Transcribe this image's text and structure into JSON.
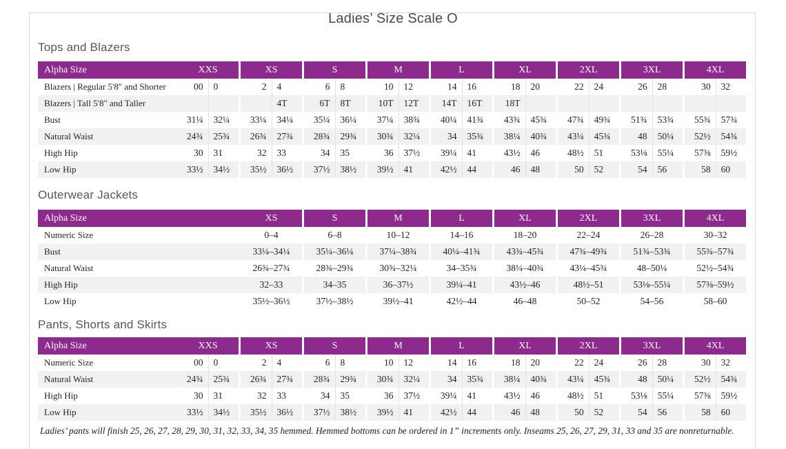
{
  "page": {
    "title": "Ladies’ Size Scale O",
    "footnote": "Ladies’ pants will finish 25, 26, 27, 28, 29, 30, 31, 32, 33, 34, 35 hemmed. Hemmed bottoms can be ordered in 1” increments only. Inseams 25, 26, 27, 29, 31, 33 and 35 are nonreturnable."
  },
  "colors": {
    "header_bg": "#8e2a8e",
    "stripe": "#f3f1ef",
    "heading_text": "#575757",
    "body_text": "#242424",
    "frame_border": "#dadada"
  },
  "tables": [
    {
      "section": "Tops and Blazers",
      "header_label": "Alpha Size",
      "merged": false,
      "columns": [
        "XXS",
        "XS",
        "S",
        "M",
        "L",
        "XL",
        "2XL",
        "3XL",
        "4XL"
      ],
      "rows": [
        {
          "label": "Blazers | Regular 5'8\" and Shorter",
          "cells": [
            [
              "00",
              "0"
            ],
            [
              "2",
              "4"
            ],
            [
              "6",
              "8"
            ],
            [
              "10",
              "12"
            ],
            [
              "14",
              "16"
            ],
            [
              "18",
              "20"
            ],
            [
              "22",
              "24"
            ],
            [
              "26",
              "28"
            ],
            [
              "30",
              "32"
            ]
          ]
        },
        {
          "label": "Blazers | Tall 5'8\" and Taller",
          "cells": [
            [
              "",
              ""
            ],
            [
              "",
              "4T"
            ],
            [
              "6T",
              "8T"
            ],
            [
              "10T",
              "12T"
            ],
            [
              "14T",
              "16T"
            ],
            [
              "18T",
              ""
            ],
            [
              "",
              ""
            ],
            [
              "",
              ""
            ],
            [
              "",
              ""
            ]
          ]
        },
        {
          "label": "Bust",
          "cells": [
            [
              "31¼",
              "32¼"
            ],
            [
              "33¼",
              "34¼"
            ],
            [
              "35¼",
              "36¼"
            ],
            [
              "37¼",
              "38¾"
            ],
            [
              "40¼",
              "41¾"
            ],
            [
              "43¾",
              "45¾"
            ],
            [
              "47¾",
              "49¾"
            ],
            [
              "51¾",
              "53¾"
            ],
            [
              "55¾",
              "57¾"
            ]
          ]
        },
        {
          "label": "Natural Waist",
          "cells": [
            [
              "24¾",
              "25¾"
            ],
            [
              "26¾",
              "27¾"
            ],
            [
              "28¾",
              "29¾"
            ],
            [
              "30¾",
              "32¼"
            ],
            [
              "34",
              "35¾"
            ],
            [
              "38¼",
              "40¾"
            ],
            [
              "43¼",
              "45¾"
            ],
            [
              "48",
              "50¼"
            ],
            [
              "52½",
              "54¾"
            ]
          ]
        },
        {
          "label": "High Hip",
          "cells": [
            [
              "30",
              "31"
            ],
            [
              "32",
              "33"
            ],
            [
              "34",
              "35"
            ],
            [
              "36",
              "37½"
            ],
            [
              "39¼",
              "41"
            ],
            [
              "43½",
              "46"
            ],
            [
              "48½",
              "51"
            ],
            [
              "53⅛",
              "55¼"
            ],
            [
              "57⅜",
              "59½"
            ]
          ]
        },
        {
          "label": "Low Hip",
          "cells": [
            [
              "33½",
              "34½"
            ],
            [
              "35½",
              "36½"
            ],
            [
              "37½",
              "38½"
            ],
            [
              "39½",
              "41"
            ],
            [
              "42½",
              "44"
            ],
            [
              "46",
              "48"
            ],
            [
              "50",
              "52"
            ],
            [
              "54",
              "56"
            ],
            [
              "58",
              "60"
            ]
          ]
        }
      ]
    },
    {
      "section": "Outerwear Jackets",
      "header_label": "Alpha Size",
      "merged": true,
      "columns": [
        "XS",
        "S",
        "M",
        "L",
        "XL",
        "2XL",
        "3XL",
        "4XL"
      ],
      "rows": [
        {
          "label": "Numeric Size",
          "cells": [
            "0–4",
            "6–8",
            "10–12",
            "14–16",
            "18–20",
            "22–24",
            "26–28",
            "30–32"
          ]
        },
        {
          "label": "Bust",
          "cells": [
            "33¼–34¼",
            "35¼–36¼",
            "37¼–38¾",
            "40¼–41¾",
            "43¾–45¾",
            "47¾–49¾",
            "51¾–53¾",
            "55¾–57¾"
          ]
        },
        {
          "label": "Natural Waist",
          "cells": [
            "26¾–27¾",
            "28¾–29¾",
            "30¾–32¼",
            "34–35¾",
            "38¼–40¾",
            "43¼–45¾",
            "48–50¼",
            "52½–54¾"
          ]
        },
        {
          "label": "High Hip",
          "cells": [
            "32–33",
            "34–35",
            "36–37½",
            "39¼–41",
            "43½–46",
            "48½–51",
            "53⅛–55¼",
            "57⅜–59½"
          ]
        },
        {
          "label": "Low Hip",
          "cells": [
            "35½–36½",
            "37½–38½",
            "39½–41",
            "42½–44",
            "46–48",
            "50–52",
            "54–56",
            "58–60"
          ]
        }
      ]
    },
    {
      "section": "Pants, Shorts and Skirts",
      "header_label": "Alpha Size",
      "merged": false,
      "columns": [
        "XXS",
        "XS",
        "S",
        "M",
        "L",
        "XL",
        "2XL",
        "3XL",
        "4XL"
      ],
      "rows": [
        {
          "label": "Numeric Size",
          "cells": [
            [
              "00",
              "0"
            ],
            [
              "2",
              "4"
            ],
            [
              "6",
              "8"
            ],
            [
              "10",
              "12"
            ],
            [
              "14",
              "16"
            ],
            [
              "18",
              "20"
            ],
            [
              "22",
              "24"
            ],
            [
              "26",
              "28"
            ],
            [
              "30",
              "32"
            ]
          ]
        },
        {
          "label": "Natural Waist",
          "cells": [
            [
              "24¾",
              "25¾"
            ],
            [
              "26¾",
              "27¾"
            ],
            [
              "28¾",
              "29¾"
            ],
            [
              "30¾",
              "32¼"
            ],
            [
              "34",
              "35¾"
            ],
            [
              "38¼",
              "40¾"
            ],
            [
              "43¼",
              "45¾"
            ],
            [
              "48",
              "50¼"
            ],
            [
              "52½",
              "54¾"
            ]
          ]
        },
        {
          "label": "High Hip",
          "cells": [
            [
              "30",
              "31"
            ],
            [
              "32",
              "33"
            ],
            [
              "34",
              "35"
            ],
            [
              "36",
              "37½"
            ],
            [
              "39¼",
              "41"
            ],
            [
              "43½",
              "46"
            ],
            [
              "48½",
              "51"
            ],
            [
              "53⅛",
              "55¼"
            ],
            [
              "57⅜",
              "59½"
            ]
          ]
        },
        {
          "label": "Low Hip",
          "cells": [
            [
              "33½",
              "34½"
            ],
            [
              "35½",
              "36½"
            ],
            [
              "37½",
              "38½"
            ],
            [
              "39½",
              "41"
            ],
            [
              "42½",
              "44"
            ],
            [
              "46",
              "48"
            ],
            [
              "50",
              "52"
            ],
            [
              "54",
              "56"
            ],
            [
              "58",
              "60"
            ]
          ]
        }
      ]
    }
  ]
}
